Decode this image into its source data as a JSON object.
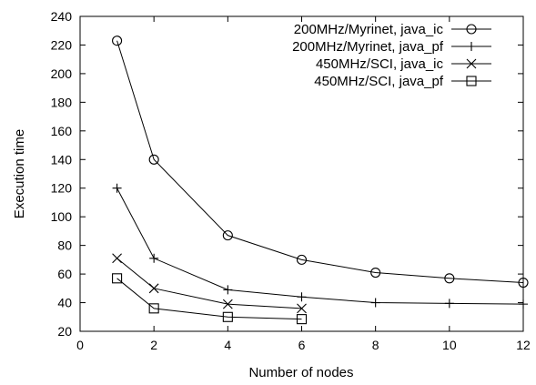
{
  "chart_data": {
    "type": "line",
    "title": "",
    "xlabel": "Number of nodes",
    "ylabel": "Execution time",
    "xlim": [
      0,
      12
    ],
    "ylim": [
      20,
      240
    ],
    "xticks": [
      0,
      2,
      4,
      6,
      8,
      10,
      12
    ],
    "yticks": [
      20,
      40,
      60,
      80,
      100,
      120,
      140,
      160,
      180,
      200,
      220,
      240
    ],
    "grid": false,
    "legend_position": "top-right",
    "series": [
      {
        "name": "200MHz/Myrinet, java_ic",
        "marker": "circle",
        "x": [
          1,
          2,
          4,
          6,
          8,
          10,
          12
        ],
        "y": [
          223,
          140,
          87,
          70,
          61,
          57,
          54
        ]
      },
      {
        "name": "200MHz/Myrinet, java_pf",
        "marker": "plus",
        "x": [
          1,
          2,
          4,
          6,
          8,
          10,
          12
        ],
        "y": [
          120,
          71,
          49,
          44,
          40,
          39.5,
          39
        ]
      },
      {
        "name": "450MHz/SCI, java_ic",
        "marker": "cross",
        "x": [
          1,
          2,
          4,
          6
        ],
        "y": [
          71,
          50,
          39,
          36
        ]
      },
      {
        "name": "450MHz/SCI, java_pf",
        "marker": "square",
        "x": [
          1,
          2,
          4,
          6
        ],
        "y": [
          57,
          36,
          30,
          28.5
        ]
      }
    ]
  }
}
